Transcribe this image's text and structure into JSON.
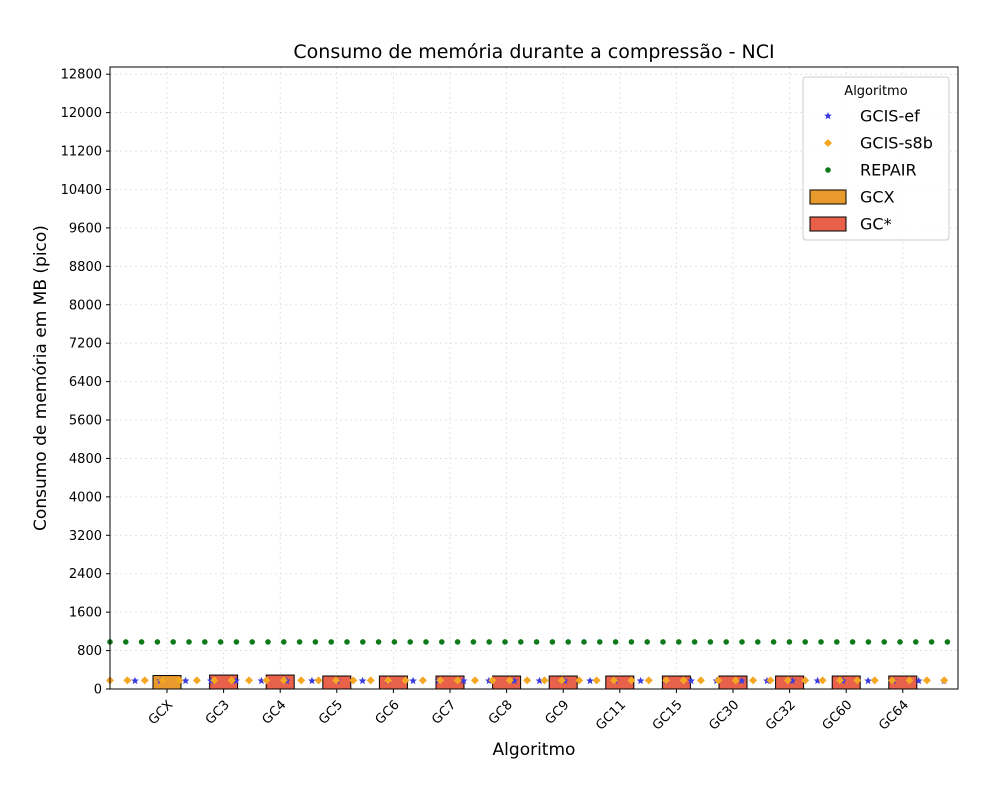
{
  "chart_data": {
    "type": "bar",
    "title": "Consumo de memória durante a compressão -  NCI",
    "xlabel": "Algoritmo",
    "ylabel": "Consumo de memória em MB (pico)",
    "ylim": [
      0,
      12950
    ],
    "yticks": [
      0,
      800,
      1600,
      2400,
      3200,
      4000,
      4800,
      5600,
      6400,
      7200,
      8000,
      8800,
      9600,
      10400,
      11200,
      12000,
      12800
    ],
    "grid": true,
    "categories": [
      "GCX",
      "GC3",
      "GC4",
      "GC5",
      "GC6",
      "GC7",
      "GC8",
      "GC9",
      "GC11",
      "GC15",
      "GC30",
      "GC32",
      "GC60",
      "GC64"
    ],
    "series": [
      {
        "name": "GCX",
        "kind": "bar",
        "color": "#e89b2c",
        "values": [
          280,
          null,
          null,
          null,
          null,
          null,
          null,
          null,
          null,
          null,
          null,
          null,
          null,
          null
        ]
      },
      {
        "name": "GC*",
        "kind": "bar",
        "color": "#e8614a",
        "values": [
          null,
          290,
          290,
          270,
          270,
          270,
          270,
          270,
          270,
          270,
          270,
          270,
          270,
          270
        ]
      },
      {
        "name": "GCIS-ef",
        "kind": "line-marker",
        "marker": "star",
        "color": "#3a3adf",
        "value": 170
      },
      {
        "name": "GCIS-s8b",
        "kind": "line-marker",
        "marker": "diamond",
        "color": "#f5a623",
        "value": 180
      },
      {
        "name": "REPAIR",
        "kind": "line-marker",
        "marker": "circle",
        "color": "#0f7a1a",
        "value": 980
      }
    ],
    "legend": {
      "title": "Algoritmo",
      "placement": "top-right",
      "entries": [
        "GCIS-ef",
        "GCIS-s8b",
        "REPAIR",
        "GCX",
        "GC*"
      ]
    }
  }
}
